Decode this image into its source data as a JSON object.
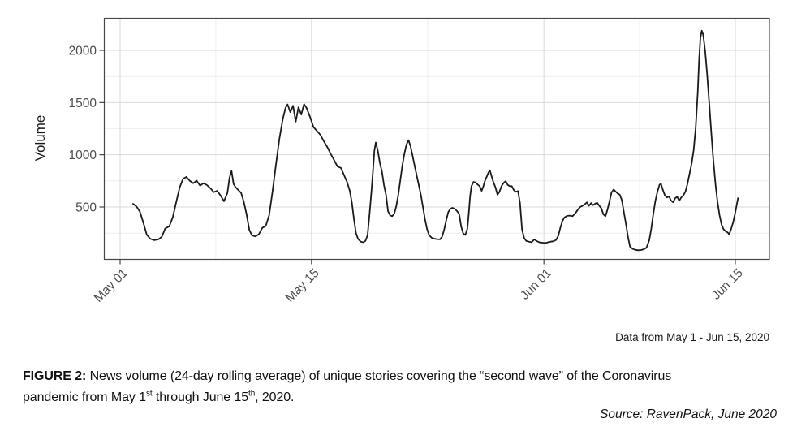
{
  "figure": {
    "y_axis_label": "Volume",
    "note": "Data from May 1 - Jun 15, 2020"
  },
  "caption": {
    "lines": [
      [
        {
          "text": "FIGURE 2:",
          "bold": true
        },
        {
          "text": " News volume (24-day rolling average) of unique stories covering the “second wave” of the Coronavirus"
        }
      ],
      [
        {
          "text": "pandemic from May 1"
        },
        {
          "text": "st",
          "sup": true
        },
        {
          "text": " through June 15"
        },
        {
          "text": "th",
          "sup": true
        },
        {
          "text": ", 2020."
        }
      ]
    ]
  },
  "source_label": "Source: RavenPack, June 2020",
  "chart_data": {
    "type": "line",
    "title": "",
    "xlabel": "",
    "ylabel": "Volume",
    "x_unit": "days since May 1, 2020",
    "grid": true,
    "legend": "none",
    "line_color": "#1a1a1a",
    "grid_major_color": "#d9d9d9",
    "grid_minor_color": "#ebebeb",
    "border_color": "#474747",
    "tick_label_color": "#4d4d4d",
    "x_ticks": [
      {
        "day": 0,
        "label": "May 01"
      },
      {
        "day": 14,
        "label": "May 15"
      },
      {
        "day": 31,
        "label": "Jun 01"
      },
      {
        "day": 45,
        "label": "Jun 15"
      }
    ],
    "x_minor_days": [
      7,
      22.5,
      38
    ],
    "y_ticks": [
      500,
      1000,
      1500,
      2000
    ],
    "y_minor": [
      250,
      750,
      1250,
      1750
    ],
    "ylim": [
      0,
      2300
    ],
    "xlim": [
      -1.2,
      47.5
    ],
    "series": [
      {
        "name": "News volume (24-day rolling average)",
        "points": [
          [
            0.95,
            530
          ],
          [
            1.2,
            505
          ],
          [
            1.45,
            455
          ],
          [
            1.7,
            350
          ],
          [
            1.95,
            235
          ],
          [
            2.2,
            195
          ],
          [
            2.5,
            182
          ],
          [
            2.8,
            190
          ],
          [
            3.05,
            215
          ],
          [
            3.3,
            295
          ],
          [
            3.6,
            315
          ],
          [
            3.85,
            400
          ],
          [
            4.1,
            545
          ],
          [
            4.35,
            685
          ],
          [
            4.6,
            770
          ],
          [
            4.85,
            788
          ],
          [
            5.1,
            750
          ],
          [
            5.35,
            728
          ],
          [
            5.6,
            752
          ],
          [
            5.85,
            705
          ],
          [
            6.1,
            728
          ],
          [
            6.35,
            710
          ],
          [
            6.6,
            680
          ],
          [
            6.85,
            642
          ],
          [
            7.1,
            655
          ],
          [
            7.35,
            610
          ],
          [
            7.6,
            555
          ],
          [
            7.85,
            635
          ],
          [
            8.0,
            780
          ],
          [
            8.15,
            845
          ],
          [
            8.3,
            720
          ],
          [
            8.45,
            690
          ],
          [
            8.6,
            668
          ],
          [
            8.85,
            635
          ],
          [
            9.05,
            550
          ],
          [
            9.25,
            430
          ],
          [
            9.45,
            280
          ],
          [
            9.65,
            228
          ],
          [
            9.9,
            218
          ],
          [
            10.15,
            240
          ],
          [
            10.4,
            300
          ],
          [
            10.65,
            318
          ],
          [
            10.9,
            420
          ],
          [
            11.15,
            650
          ],
          [
            11.4,
            905
          ],
          [
            11.65,
            1150
          ],
          [
            11.9,
            1340
          ],
          [
            12.1,
            1450
          ],
          [
            12.25,
            1482
          ],
          [
            12.45,
            1408
          ],
          [
            12.65,
            1470
          ],
          [
            12.85,
            1318
          ],
          [
            13.05,
            1455
          ],
          [
            13.25,
            1385
          ],
          [
            13.45,
            1485
          ],
          [
            13.65,
            1445
          ],
          [
            13.9,
            1360
          ],
          [
            14.15,
            1265
          ],
          [
            14.4,
            1228
          ],
          [
            14.65,
            1190
          ],
          [
            14.9,
            1130
          ],
          [
            15.15,
            1075
          ],
          [
            15.4,
            1010
          ],
          [
            15.65,
            950
          ],
          [
            15.9,
            888
          ],
          [
            16.15,
            875
          ],
          [
            16.4,
            800
          ],
          [
            16.6,
            740
          ],
          [
            16.8,
            655
          ],
          [
            16.95,
            545
          ],
          [
            17.1,
            390
          ],
          [
            17.25,
            250
          ],
          [
            17.4,
            195
          ],
          [
            17.6,
            168
          ],
          [
            17.8,
            162
          ],
          [
            17.95,
            175
          ],
          [
            18.1,
            230
          ],
          [
            18.25,
            440
          ],
          [
            18.4,
            670
          ],
          [
            18.5,
            850
          ],
          [
            18.6,
            1040
          ],
          [
            18.7,
            1118
          ],
          [
            18.85,
            1040
          ],
          [
            19.0,
            925
          ],
          [
            19.15,
            840
          ],
          [
            19.3,
            710
          ],
          [
            19.45,
            617
          ],
          [
            19.6,
            460
          ],
          [
            19.75,
            420
          ],
          [
            19.9,
            412
          ],
          [
            20.05,
            435
          ],
          [
            20.2,
            505
          ],
          [
            20.35,
            620
          ],
          [
            20.5,
            760
          ],
          [
            20.65,
            900
          ],
          [
            20.8,
            1015
          ],
          [
            20.95,
            1100
          ],
          [
            21.1,
            1140
          ],
          [
            21.25,
            1080
          ],
          [
            21.4,
            985
          ],
          [
            21.55,
            890
          ],
          [
            21.7,
            800
          ],
          [
            21.85,
            710
          ],
          [
            22.0,
            615
          ],
          [
            22.15,
            500
          ],
          [
            22.3,
            385
          ],
          [
            22.45,
            290
          ],
          [
            22.6,
            230
          ],
          [
            22.8,
            205
          ],
          [
            23.0,
            195
          ],
          [
            23.2,
            192
          ],
          [
            23.4,
            190
          ],
          [
            23.55,
            215
          ],
          [
            23.7,
            280
          ],
          [
            23.85,
            370
          ],
          [
            24.0,
            450
          ],
          [
            24.15,
            482
          ],
          [
            24.3,
            492
          ],
          [
            24.5,
            480
          ],
          [
            24.65,
            460
          ],
          [
            24.8,
            435
          ],
          [
            24.95,
            310
          ],
          [
            25.1,
            245
          ],
          [
            25.25,
            232
          ],
          [
            25.4,
            290
          ],
          [
            25.5,
            430
          ],
          [
            25.6,
            600
          ],
          [
            25.7,
            700
          ],
          [
            25.85,
            740
          ],
          [
            26.0,
            735
          ],
          [
            26.15,
            715
          ],
          [
            26.3,
            700
          ],
          [
            26.45,
            655
          ],
          [
            26.55,
            690
          ],
          [
            26.7,
            755
          ],
          [
            26.85,
            800
          ],
          [
            26.95,
            830
          ],
          [
            27.05,
            852
          ],
          [
            27.15,
            805
          ],
          [
            27.3,
            740
          ],
          [
            27.45,
            690
          ],
          [
            27.6,
            618
          ],
          [
            27.75,
            645
          ],
          [
            27.9,
            700
          ],
          [
            28.05,
            730
          ],
          [
            28.2,
            748
          ],
          [
            28.35,
            712
          ],
          [
            28.5,
            700
          ],
          [
            28.65,
            700
          ],
          [
            28.8,
            662
          ],
          [
            28.95,
            645
          ],
          [
            29.1,
            652
          ],
          [
            29.25,
            540
          ],
          [
            29.4,
            285
          ],
          [
            29.55,
            205
          ],
          [
            29.7,
            175
          ],
          [
            29.9,
            168
          ],
          [
            30.1,
            163
          ],
          [
            30.3,
            190
          ],
          [
            30.5,
            172
          ],
          [
            30.7,
            160
          ],
          [
            30.9,
            158
          ],
          [
            31.1,
            155
          ],
          [
            31.3,
            162
          ],
          [
            31.5,
            168
          ],
          [
            31.7,
            172
          ],
          [
            31.9,
            185
          ],
          [
            32.05,
            225
          ],
          [
            32.2,
            300
          ],
          [
            32.35,
            365
          ],
          [
            32.5,
            400
          ],
          [
            32.7,
            415
          ],
          [
            32.9,
            418
          ],
          [
            33.1,
            412
          ],
          [
            33.3,
            440
          ],
          [
            33.5,
            478
          ],
          [
            33.65,
            500
          ],
          [
            33.8,
            510
          ],
          [
            34.0,
            528
          ],
          [
            34.15,
            545
          ],
          [
            34.3,
            512
          ],
          [
            34.45,
            538
          ],
          [
            34.6,
            518
          ],
          [
            34.75,
            532
          ],
          [
            34.9,
            540
          ],
          [
            35.05,
            512
          ],
          [
            35.2,
            488
          ],
          [
            35.35,
            430
          ],
          [
            35.5,
            412
          ],
          [
            35.65,
            475
          ],
          [
            35.8,
            555
          ],
          [
            35.95,
            640
          ],
          [
            36.1,
            668
          ],
          [
            36.25,
            648
          ],
          [
            36.4,
            630
          ],
          [
            36.55,
            618
          ],
          [
            36.7,
            565
          ],
          [
            36.85,
            450
          ],
          [
            37.0,
            340
          ],
          [
            37.15,
            210
          ],
          [
            37.3,
            120
          ],
          [
            37.5,
            98
          ],
          [
            37.7,
            90
          ],
          [
            37.9,
            86
          ],
          [
            38.1,
            88
          ],
          [
            38.3,
            95
          ],
          [
            38.5,
            110
          ],
          [
            38.7,
            180
          ],
          [
            38.85,
            290
          ],
          [
            39.0,
            430
          ],
          [
            39.15,
            555
          ],
          [
            39.3,
            645
          ],
          [
            39.45,
            710
          ],
          [
            39.55,
            726
          ],
          [
            39.7,
            665
          ],
          [
            39.85,
            612
          ],
          [
            40.0,
            592
          ],
          [
            40.15,
            600
          ],
          [
            40.3,
            562
          ],
          [
            40.45,
            545
          ],
          [
            40.6,
            585
          ],
          [
            40.75,
            598
          ],
          [
            40.9,
            560
          ],
          [
            41.05,
            592
          ],
          [
            41.2,
            612
          ],
          [
            41.35,
            648
          ],
          [
            41.5,
            720
          ],
          [
            41.65,
            818
          ],
          [
            41.8,
            912
          ],
          [
            41.95,
            1040
          ],
          [
            42.1,
            1250
          ],
          [
            42.25,
            1600
          ],
          [
            42.35,
            1900
          ],
          [
            42.45,
            2120
          ],
          [
            42.55,
            2188
          ],
          [
            42.65,
            2150
          ],
          [
            42.8,
            1990
          ],
          [
            42.95,
            1760
          ],
          [
            43.1,
            1480
          ],
          [
            43.25,
            1200
          ],
          [
            43.4,
            940
          ],
          [
            43.55,
            715
          ],
          [
            43.7,
            545
          ],
          [
            43.85,
            420
          ],
          [
            44.0,
            330
          ],
          [
            44.15,
            285
          ],
          [
            44.3,
            268
          ],
          [
            44.45,
            255
          ],
          [
            44.55,
            238
          ],
          [
            44.7,
            290
          ],
          [
            44.85,
            360
          ],
          [
            45.0,
            450
          ],
          [
            45.1,
            520
          ],
          [
            45.2,
            585
          ]
        ]
      }
    ]
  }
}
